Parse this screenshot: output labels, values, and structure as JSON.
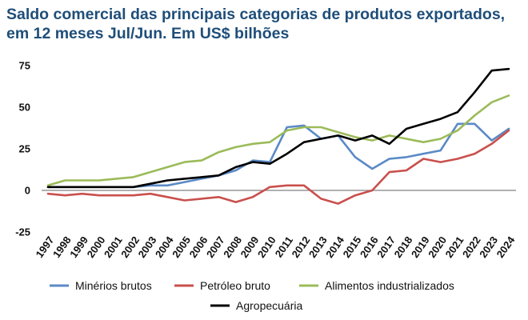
{
  "chart_data": {
    "type": "line",
    "title_lines": [
      "Saldo comercial das principais categorias de produtos exportados,",
      "em 12 meses Jul/Jun. Em US$ bilhões"
    ],
    "x": [
      "1997",
      "1998",
      "1999",
      "2000",
      "2001",
      "2002",
      "2003",
      "2004",
      "2005",
      "2006",
      "2007",
      "2008",
      "2009",
      "2010",
      "2011",
      "2012",
      "2013",
      "2014",
      "2015",
      "2016",
      "2017",
      "2018",
      "2019",
      "2020",
      "2021",
      "2022",
      "2023",
      "2024"
    ],
    "yticks": [
      75,
      50,
      25,
      0,
      -25
    ],
    "ylim": [
      -25,
      75
    ],
    "grid": false,
    "legend_position": "bottom",
    "series": [
      {
        "name": "Minérios brutos",
        "color": "#5b8ac6",
        "values": [
          2,
          2,
          2,
          2,
          2,
          2,
          3,
          3,
          5,
          7,
          9,
          12,
          18,
          17,
          38,
          39,
          31,
          33,
          20,
          13,
          19,
          20,
          22,
          24,
          40,
          40,
          30,
          37
        ]
      },
      {
        "name": "Petróleo bruto",
        "color": "#c9504d",
        "values": [
          -2,
          -3,
          -2,
          -3,
          -3,
          -3,
          -2,
          -4,
          -6,
          -5,
          -4,
          -7,
          -4,
          2,
          3,
          3,
          -5,
          -8,
          -3,
          0,
          11,
          12,
          19,
          17,
          19,
          22,
          28,
          36
        ]
      },
      {
        "name": "Alimentos industrializados",
        "color": "#9bbb59",
        "values": [
          3,
          6,
          6,
          6,
          7,
          8,
          11,
          14,
          17,
          18,
          23,
          26,
          28,
          29,
          36,
          38,
          38,
          35,
          32,
          30,
          33,
          31,
          29,
          31,
          36,
          45,
          53,
          57
        ]
      },
      {
        "name": "Agropecuária",
        "color": "#000000",
        "values": [
          2,
          2,
          2,
          2,
          2,
          2,
          4,
          6,
          7,
          8,
          9,
          14,
          17,
          16,
          22,
          29,
          31,
          33,
          30,
          33,
          28,
          37,
          40,
          43,
          47,
          59,
          72,
          73
        ]
      }
    ]
  }
}
